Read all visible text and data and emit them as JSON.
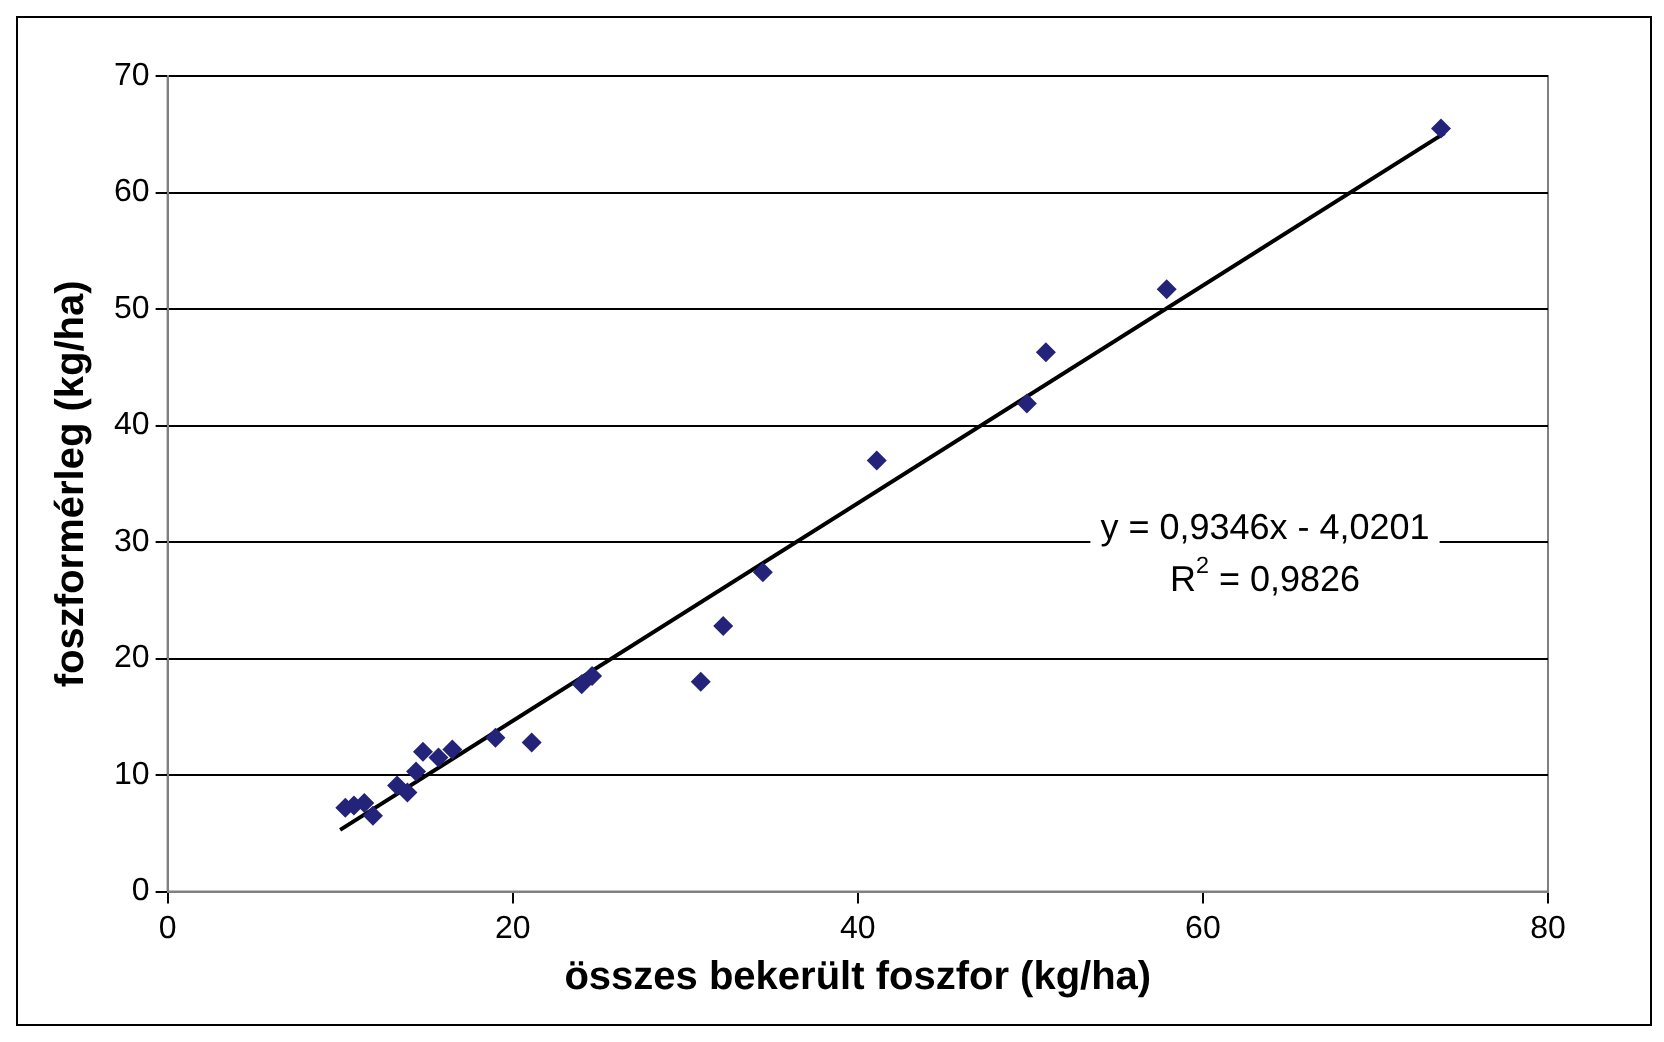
{
  "chart_data": {
    "type": "scatter",
    "xlabel": "összes bekerült foszfor (kg/ha)",
    "ylabel": "foszformérleg (kg/ha)",
    "xlim": [
      0,
      80
    ],
    "xticks": [
      0,
      20,
      40,
      60,
      80
    ],
    "ylim": [
      0,
      70
    ],
    "yticks": [
      0,
      10,
      20,
      30,
      40,
      50,
      60,
      70
    ],
    "grid": "y",
    "legend": false,
    "series": [
      {
        "marker": "diamond",
        "color": "#23237a",
        "x": [
          10.3,
          10.8,
          11.4,
          11.9,
          13.3,
          13.9,
          14.4,
          14.8,
          15.7,
          16.5,
          19,
          21.1,
          24,
          24.6,
          30.9,
          32.2,
          34.5,
          41.1,
          49.8,
          50.9,
          57.9,
          73.8
        ],
        "values": [
          7.2,
          7.4,
          7.6,
          6.5,
          9.1,
          8.5,
          10.3,
          12,
          11.5,
          12.2,
          13.2,
          12.8,
          17.8,
          18.5,
          18,
          22.8,
          27.4,
          37,
          41.9,
          46.3,
          51.7,
          65.5
        ]
      },
      {
        "type": "line",
        "marker": "none",
        "color": "#000000",
        "x": [
          10,
          74
        ],
        "values": [
          5.3,
          65.1
        ]
      }
    ],
    "annotations": [
      "y = 0,9346x - 4,0201",
      "R$^{2}$ = 0,9826"
    ]
  }
}
